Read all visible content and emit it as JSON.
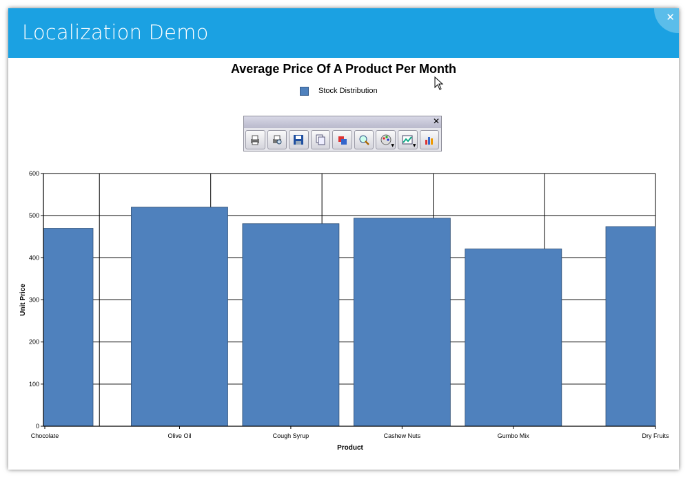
{
  "window": {
    "title": "Localization Demo"
  },
  "toolbar": {
    "buttons": [
      {
        "icon": "print-icon"
      },
      {
        "icon": "print-preview-icon"
      },
      {
        "icon": "save-icon"
      },
      {
        "icon": "copy-icon"
      },
      {
        "icon": "chart-type-icon"
      },
      {
        "icon": "zoom-icon"
      },
      {
        "icon": "palette-icon",
        "dropdown": true
      },
      {
        "icon": "chart-style-icon",
        "dropdown": true
      },
      {
        "icon": "chart-wizard-icon"
      }
    ]
  },
  "colors": {
    "titlebar": "#1ba1e2",
    "bar": "#4f81bd"
  },
  "chart_data": {
    "type": "bar",
    "title": "Average Price Of A Product Per Month",
    "xlabel": "Product",
    "ylabel": "Unit Price",
    "categories": [
      "Chocolate",
      "Olive Oil",
      "Cough Syrup",
      "Cashew Nuts",
      "Gumbo Mix",
      "Dry Fruits"
    ],
    "series": [
      {
        "name": "Stock Distribution",
        "values": [
          470,
          520,
          481,
          494,
          421,
          474
        ]
      }
    ],
    "ylim": [
      0,
      600
    ],
    "yticks": [
      0,
      100,
      200,
      300,
      400,
      500,
      600
    ],
    "grid": true,
    "legend": "top-center"
  }
}
